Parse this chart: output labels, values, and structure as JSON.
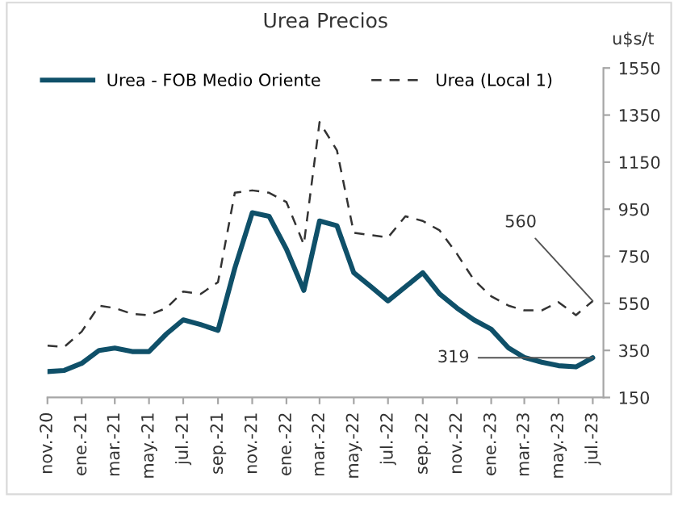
{
  "chart_data": {
    "type": "line",
    "title": "Urea Precios",
    "ylabel": "u$s/t",
    "x": [
      "2020-11",
      "2020-12",
      "2021-01",
      "2021-02",
      "2021-03",
      "2021-04",
      "2021-05",
      "2021-06",
      "2021-07",
      "2021-08",
      "2021-09",
      "2021-10",
      "2021-11",
      "2021-12",
      "2022-01",
      "2022-02",
      "2022-03",
      "2022-04",
      "2022-05",
      "2022-06",
      "2022-07",
      "2022-08",
      "2022-09",
      "2022-10",
      "2022-11",
      "2022-12",
      "2023-01",
      "2023-02",
      "2023-03",
      "2023-04",
      "2023-05",
      "2023-06",
      "2023-07"
    ],
    "series": [
      {
        "name": "Urea - FOB Medio Oriente",
        "color": "#0f5069",
        "line_style": "solid",
        "values": [
          260,
          265,
          295,
          350,
          360,
          345,
          345,
          420,
          480,
          460,
          435,
          700,
          935,
          920,
          780,
          605,
          900,
          880,
          680,
          620,
          560,
          620,
          680,
          590,
          530,
          480,
          440,
          360,
          320,
          300,
          285,
          280,
          319
        ]
      },
      {
        "name": "Urea (Local 1)",
        "color": "#333333",
        "line_style": "dashed",
        "values": [
          370,
          365,
          430,
          540,
          530,
          505,
          500,
          530,
          600,
          590,
          640,
          1020,
          1030,
          1020,
          980,
          800,
          1320,
          1200,
          850,
          840,
          830,
          920,
          900,
          860,
          760,
          650,
          580,
          540,
          520,
          520,
          555,
          500,
          560
        ]
      }
    ],
    "ylim": [
      150,
      1550
    ],
    "yticks": [
      150,
      350,
      550,
      750,
      950,
      1150,
      1350,
      1550
    ],
    "xlim": [
      "2020-11",
      "2023-07-20"
    ],
    "xticks": [
      {
        "value": "2020-11",
        "label": "nov.-20"
      },
      {
        "value": "2021-01",
        "label": "ene.-21"
      },
      {
        "value": "2021-03",
        "label": "mar.-21"
      },
      {
        "value": "2021-05",
        "label": "may.-21"
      },
      {
        "value": "2021-07",
        "label": "jul.-21"
      },
      {
        "value": "2021-09",
        "label": "sep.-21"
      },
      {
        "value": "2021-11",
        "label": "nov.-21"
      },
      {
        "value": "2022-01",
        "label": "ene.-22"
      },
      {
        "value": "2022-03",
        "label": "mar.-22"
      },
      {
        "value": "2022-05",
        "label": "may.-22"
      },
      {
        "value": "2022-07",
        "label": "jul.-22"
      },
      {
        "value": "2022-09",
        "label": "sep.-22"
      },
      {
        "value": "2022-11",
        "label": "nov.-22"
      },
      {
        "value": "2023-01",
        "label": "ene.-23"
      },
      {
        "value": "2023-03",
        "label": "mar.-23"
      },
      {
        "value": "2023-05",
        "label": "may.-23"
      },
      {
        "value": "2023-07",
        "label": "jul.-23"
      }
    ],
    "annotations": [
      {
        "text": "560",
        "x": "2023-07",
        "y": 560
      },
      {
        "text": "319",
        "x": "2023-07",
        "y": 319
      }
    ],
    "grid": false,
    "legend": "top",
    "marker": "none"
  }
}
